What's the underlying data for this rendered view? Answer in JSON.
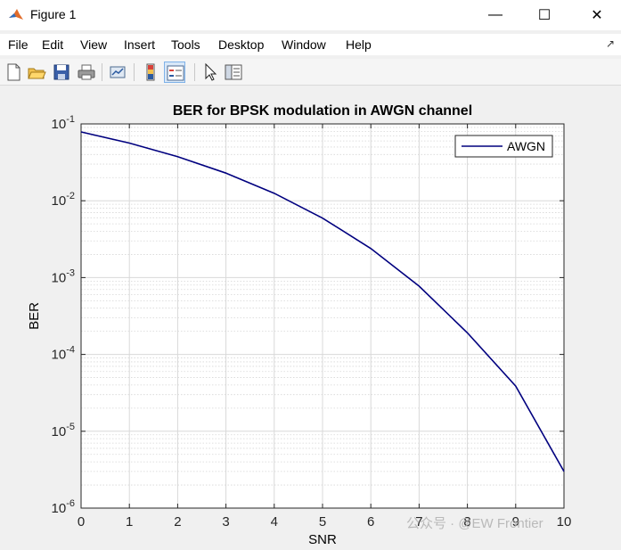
{
  "window": {
    "title": "Figure 1",
    "controls": {
      "minimize": "—",
      "maximize": "☐",
      "close": "✕"
    }
  },
  "menu": {
    "items": [
      "File",
      "Edit",
      "View",
      "Insert",
      "Tools",
      "Desktop",
      "Window",
      "Help"
    ],
    "pin_glyph": "↗"
  },
  "toolbar": {
    "buttons": [
      "new-figure-icon",
      "open-file-icon",
      "save-icon",
      "print-icon",
      "link-plot-icon",
      "insert-colorbar-icon",
      "insert-legend-icon",
      "edit-plot-arrow-icon",
      "property-inspector-icon"
    ]
  },
  "chart_data": {
    "type": "line",
    "title": "BER for BPSK modulation in AWGN channel",
    "xlabel": "SNR",
    "ylabel": "BER",
    "x": [
      0,
      1,
      2,
      3,
      4,
      5,
      6,
      7,
      8,
      9,
      10
    ],
    "series": [
      {
        "name": "AWGN",
        "color": "#00007f",
        "values": [
          0.0786,
          0.0563,
          0.0375,
          0.0229,
          0.0125,
          0.00595,
          0.00239,
          0.000773,
          0.000191,
          3.87e-05,
          3e-06
        ]
      }
    ],
    "xlim": [
      0,
      10
    ],
    "ylim": [
      1e-06,
      0.1
    ],
    "yscale": "log",
    "xticks": [
      "0",
      "1",
      "2",
      "3",
      "4",
      "5",
      "6",
      "7",
      "8",
      "9",
      "10"
    ],
    "ytick_labels": [
      {
        "base": "10",
        "exp": "-1",
        "value": 0.1
      },
      {
        "base": "10",
        "exp": "-2",
        "value": 0.01
      },
      {
        "base": "10",
        "exp": "-3",
        "value": 0.001
      },
      {
        "base": "10",
        "exp": "-4",
        "value": 0.0001
      },
      {
        "base": "10",
        "exp": "-5",
        "value": 1e-05
      },
      {
        "base": "10",
        "exp": "-6",
        "value": 1e-06
      }
    ],
    "grid": true,
    "legend_position": "top-right"
  },
  "watermark": "公众号 · @EW Frontier"
}
